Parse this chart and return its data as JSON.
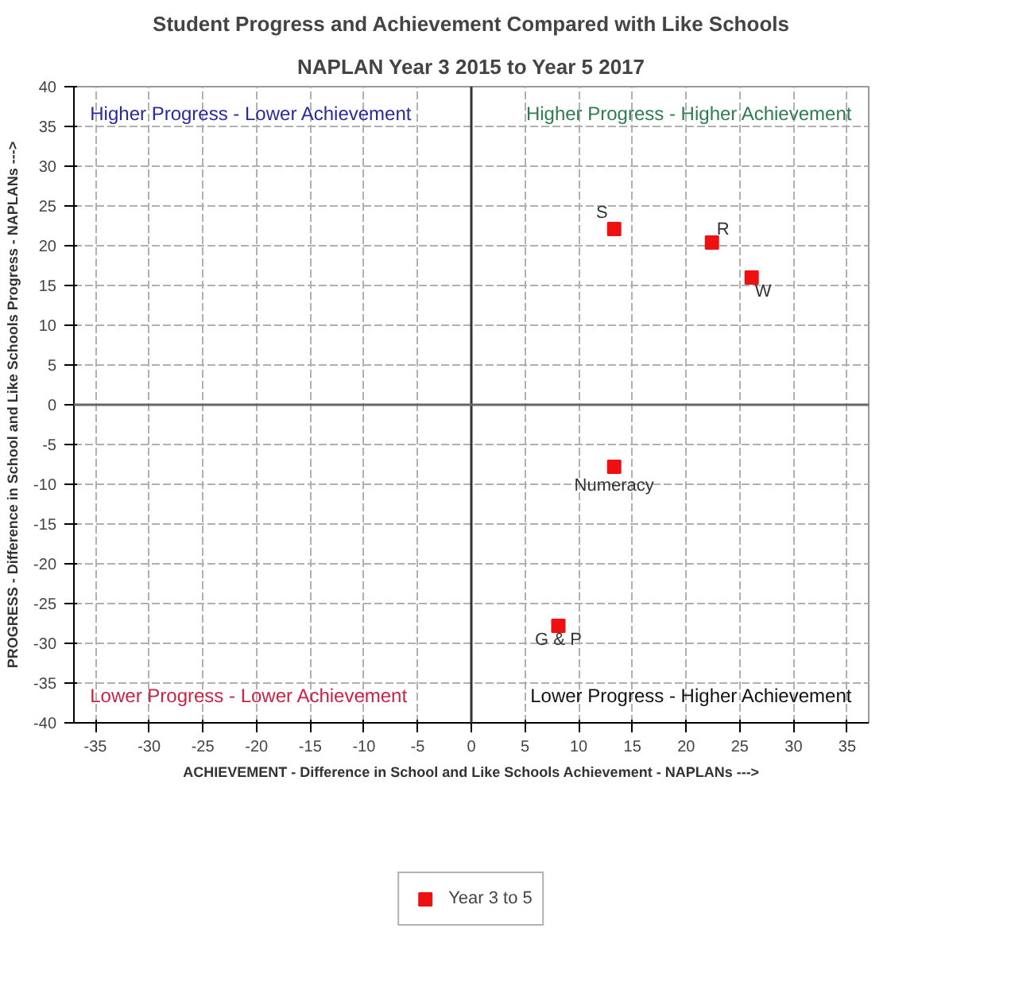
{
  "chart_data": {
    "type": "scatter",
    "title": "Student Progress and Achievement Compared with Like Schools",
    "subtitle": "NAPLAN Year 3 2015 to Year 5 2017",
    "xlabel": "ACHIEVEMENT - Difference in School and Like Schools Achievement - NAPLANs --->",
    "ylabel": "PROGRESS - Difference in School and Like Schools Progress - NAPLANs --->",
    "x": [
      13.3,
      22.4,
      26.1,
      13.3,
      8.1
    ],
    "series": [
      {
        "name": "Year 3 to 5",
        "color": "#ee1111",
        "values": [
          22.1,
          20.4,
          16.0,
          -7.8,
          -27.8
        ]
      }
    ],
    "xlim": [
      -37,
      37
    ],
    "ylim": [
      -40,
      40
    ],
    "xticks": [
      -35,
      -30,
      -25,
      -20,
      -15,
      -10,
      -5,
      0,
      5,
      10,
      15,
      20,
      25,
      30,
      35
    ],
    "yticks": [
      -40,
      -35,
      -30,
      -25,
      -20,
      -15,
      -10,
      -5,
      0,
      5,
      10,
      15,
      20,
      25,
      30,
      35,
      40
    ],
    "ref_lines": [
      {
        "axis": "x",
        "value": 0,
        "color": "#333333"
      },
      {
        "axis": "y",
        "value": 0,
        "color": "#666666"
      }
    ],
    "annotations": [
      "Higher Progress - Lower Achievement",
      "Higher Progress - Higher Achievement",
      "Lower Progress - Lower Achievement",
      "Lower Progress - Higher Achievement",
      {
        "text": "S",
        "x": 13.3,
        "y": 22.1
      },
      {
        "text": "R",
        "x": 22.4,
        "y": 20.4
      },
      {
        "text": "W",
        "x": 26.1,
        "y": 16.0
      },
      {
        "text": "Numeracy",
        "x": 13.3,
        "y": -7.8
      },
      {
        "text": "G & P",
        "x": 8.1,
        "y": -27.8
      }
    ],
    "grid": true,
    "legend": "bottom",
    "marker": "square"
  }
}
